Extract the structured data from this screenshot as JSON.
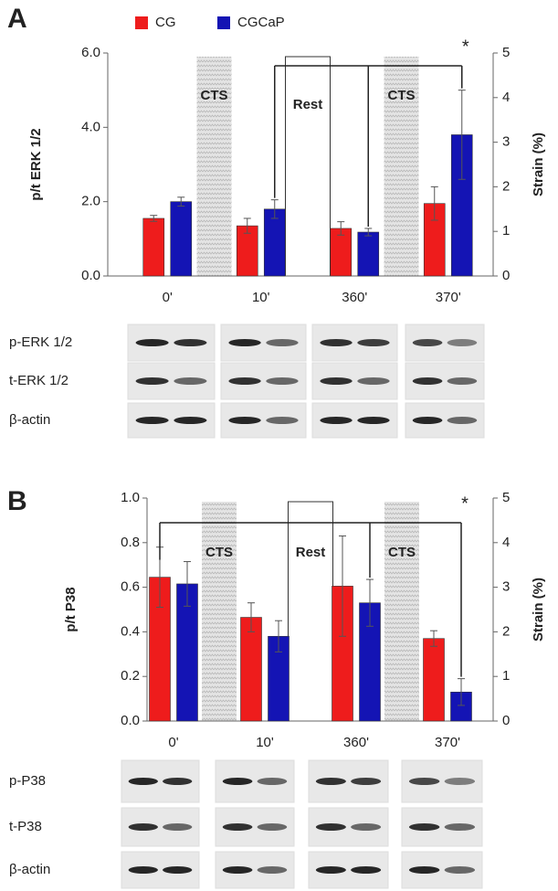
{
  "chart_data": [
    {
      "type": "bar",
      "panel": "A",
      "y_label": "p/t ERK 1/2",
      "y2_label": "Strain (%)",
      "legend": true,
      "categories": [
        "0'",
        "10'",
        "360'",
        "370'"
      ],
      "series": [
        {
          "name": "CG",
          "color": "#ee1c1c",
          "values": [
            1.55,
            1.35,
            1.28,
            1.95
          ],
          "errors": [
            0.08,
            0.2,
            0.18,
            0.45
          ]
        },
        {
          "name": "CGCaP",
          "color": "#1414b4",
          "values": [
            2.0,
            1.8,
            1.18,
            3.8
          ],
          "errors": [
            0.12,
            0.25,
            0.1,
            1.2
          ]
        }
      ],
      "ylim": [
        0,
        6
      ],
      "yticks": [
        {
          "value": 0,
          "label": "0.0"
        },
        {
          "value": 2,
          "label": "2.0"
        },
        {
          "value": 4,
          "label": "4.0"
        },
        {
          "value": 6,
          "label": "6.0"
        }
      ],
      "y2lim": [
        0,
        5
      ],
      "y2ticks": [
        0,
        1,
        2,
        3,
        4,
        5
      ],
      "annotations": [
        "CTS",
        "Rest",
        "CTS",
        "*"
      ]
    },
    {
      "type": "bar",
      "panel": "B",
      "y_label": "p/t P38",
      "y2_label": "Strain (%)",
      "legend": false,
      "categories": [
        "0'",
        "10'",
        "360'",
        "370'"
      ],
      "series": [
        {
          "name": "CG",
          "color": "#ee1c1c",
          "values": [
            0.645,
            0.465,
            0.605,
            0.37
          ],
          "errors": [
            0.135,
            0.065,
            0.225,
            0.035
          ]
        },
        {
          "name": "CGCaP",
          "color": "#1414b4",
          "values": [
            0.615,
            0.38,
            0.53,
            0.13
          ],
          "errors": [
            0.1,
            0.07,
            0.105,
            0.06
          ]
        }
      ],
      "ylim": [
        0,
        1
      ],
      "yticks": [
        {
          "value": 0,
          "label": "0.0"
        },
        {
          "value": 0.2,
          "label": "0.2"
        },
        {
          "value": 0.4,
          "label": "0.4"
        },
        {
          "value": 0.6,
          "label": "0.6"
        },
        {
          "value": 0.8,
          "label": "0.8"
        },
        {
          "value": 1,
          "label": "1.0"
        }
      ],
      "y2lim": [
        0,
        5
      ],
      "y2ticks": [
        0,
        1,
        2,
        3,
        4,
        5
      ],
      "annotations": [
        "CTS",
        "Rest",
        "CTS",
        "*"
      ]
    }
  ],
  "blots": [
    {
      "rows": [
        "p-ERK 1/2",
        "t-ERK 1/2",
        "β-actin"
      ]
    },
    {
      "rows": [
        "p-P38",
        "t-P38",
        "β-actin"
      ]
    }
  ]
}
